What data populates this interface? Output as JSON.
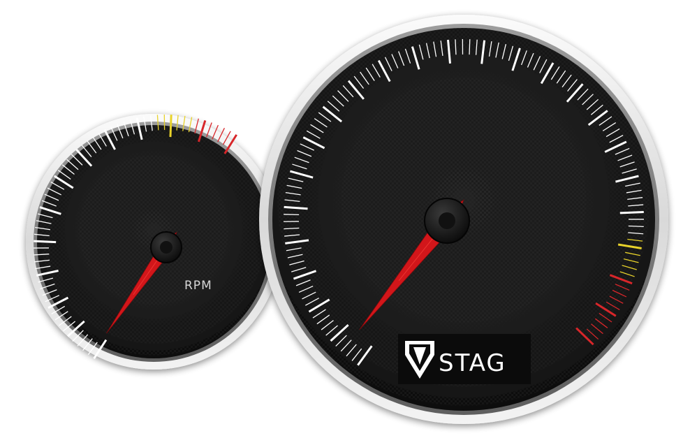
{
  "dashboard": {
    "tachometer": {
      "label": "RPM",
      "needle_fraction": 0.01,
      "tick_count": 60,
      "zones": [
        {
          "name": "normal",
          "color": "#ffffff"
        },
        {
          "name": "caution",
          "color": "#e8d22a"
        },
        {
          "name": "redline",
          "color": "#d8262a"
        }
      ]
    },
    "speedometer": {
      "needle_fraction": 0.01,
      "tick_count": 120,
      "zones": [
        {
          "name": "normal",
          "color": "#ffffff"
        },
        {
          "name": "caution",
          "color": "#e8d22a"
        },
        {
          "name": "redline",
          "color": "#d8262a"
        }
      ],
      "brand": {
        "name": "STAG",
        "logo_icon": "stag-shield-icon"
      }
    },
    "colors": {
      "needle": "#d2161a",
      "face": "#1e1e1e",
      "bezel": "#e9e9e9"
    }
  }
}
